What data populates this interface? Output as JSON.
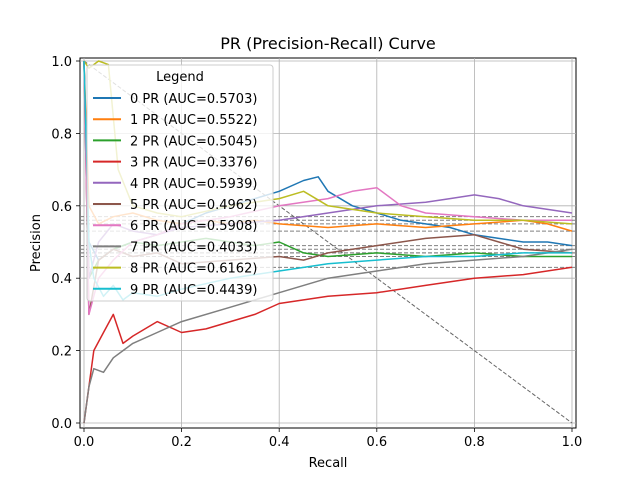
{
  "chart_data": {
    "type": "line",
    "title": "PR (Precision-Recall) Curve",
    "xlabel": "Recall",
    "ylabel": "Precision",
    "xlim": [
      0,
      1
    ],
    "ylim": [
      0,
      1
    ],
    "xticks": [
      "0.0",
      "0.2",
      "0.4",
      "0.6",
      "0.8",
      "1.0"
    ],
    "yticks": [
      "0.0",
      "0.2",
      "0.4",
      "0.6",
      "0.8",
      "1.0"
    ],
    "grid": true,
    "legend_title": "Legend",
    "legend_position": "upper-left",
    "diagonal_reference": {
      "x": [
        0,
        1
      ],
      "y": [
        1,
        0
      ]
    },
    "series": [
      {
        "name": "0 PR (AUC=0.5703)",
        "color": "#1f77b4",
        "baseline": 0.49,
        "x": [
          0,
          0.01,
          0.03,
          0.06,
          0.1,
          0.15,
          0.2,
          0.25,
          0.3,
          0.35,
          0.4,
          0.45,
          0.48,
          0.5,
          0.55,
          0.6,
          0.65,
          0.7,
          0.75,
          0.8,
          0.85,
          0.9,
          0.95,
          1.0
        ],
        "y": [
          1.0,
          0.5,
          0.45,
          0.48,
          0.5,
          0.52,
          0.55,
          0.58,
          0.6,
          0.62,
          0.64,
          0.67,
          0.68,
          0.64,
          0.6,
          0.58,
          0.56,
          0.55,
          0.54,
          0.52,
          0.51,
          0.5,
          0.5,
          0.49
        ]
      },
      {
        "name": "1 PR (AUC=0.5522)",
        "color": "#ff7f0e",
        "baseline": 0.53,
        "x": [
          0,
          0.01,
          0.03,
          0.06,
          0.1,
          0.15,
          0.2,
          0.25,
          0.3,
          0.35,
          0.4,
          0.5,
          0.6,
          0.7,
          0.8,
          0.9,
          0.95,
          1.0
        ],
        "y": [
          1.0,
          0.6,
          0.55,
          0.57,
          0.58,
          0.56,
          0.55,
          0.56,
          0.55,
          0.56,
          0.55,
          0.54,
          0.55,
          0.54,
          0.55,
          0.56,
          0.55,
          0.53
        ]
      },
      {
        "name": "2 PR (AUC=0.5045)",
        "color": "#2ca02c",
        "baseline": 0.46,
        "x": [
          0,
          0.01,
          0.03,
          0.06,
          0.1,
          0.15,
          0.2,
          0.25,
          0.3,
          0.35,
          0.4,
          0.45,
          0.5,
          0.6,
          0.7,
          0.8,
          0.9,
          1.0
        ],
        "y": [
          1.0,
          0.4,
          0.45,
          0.48,
          0.5,
          0.49,
          0.5,
          0.51,
          0.5,
          0.49,
          0.5,
          0.47,
          0.46,
          0.47,
          0.46,
          0.47,
          0.46,
          0.46
        ]
      },
      {
        "name": "3 PR (AUC=0.3376)",
        "color": "#d62728",
        "baseline": 0.43,
        "x": [
          0,
          0.01,
          0.02,
          0.04,
          0.06,
          0.08,
          0.1,
          0.15,
          0.2,
          0.25,
          0.3,
          0.35,
          0.4,
          0.5,
          0.6,
          0.7,
          0.8,
          0.9,
          1.0
        ],
        "y": [
          0.0,
          0.1,
          0.2,
          0.25,
          0.3,
          0.22,
          0.24,
          0.28,
          0.25,
          0.26,
          0.28,
          0.3,
          0.33,
          0.35,
          0.36,
          0.38,
          0.4,
          0.41,
          0.43
        ]
      },
      {
        "name": "4 PR (AUC=0.5939)",
        "color": "#9467bd",
        "baseline": 0.57,
        "x": [
          0,
          0.01,
          0.03,
          0.06,
          0.1,
          0.15,
          0.2,
          0.3,
          0.4,
          0.5,
          0.6,
          0.7,
          0.75,
          0.8,
          0.85,
          0.9,
          0.95,
          1.0
        ],
        "y": [
          1.0,
          0.4,
          0.5,
          0.55,
          0.53,
          0.52,
          0.54,
          0.55,
          0.56,
          0.58,
          0.6,
          0.61,
          0.62,
          0.63,
          0.62,
          0.6,
          0.59,
          0.58
        ]
      },
      {
        "name": "5 PR (AUC=0.4962)",
        "color": "#8c564b",
        "baseline": 0.47,
        "x": [
          0,
          0.01,
          0.03,
          0.06,
          0.1,
          0.15,
          0.2,
          0.3,
          0.4,
          0.45,
          0.5,
          0.6,
          0.7,
          0.8,
          0.85,
          0.9,
          1.0
        ],
        "y": [
          1.0,
          0.3,
          0.45,
          0.48,
          0.46,
          0.47,
          0.44,
          0.45,
          0.46,
          0.45,
          0.47,
          0.49,
          0.51,
          0.52,
          0.5,
          0.48,
          0.47
        ]
      },
      {
        "name": "6 PR (AUC=0.5908)",
        "color": "#e377c2",
        "baseline": 0.56,
        "x": [
          0,
          0.01,
          0.03,
          0.06,
          0.1,
          0.15,
          0.2,
          0.3,
          0.4,
          0.5,
          0.55,
          0.6,
          0.65,
          0.7,
          0.8,
          0.9,
          1.0
        ],
        "y": [
          1.0,
          0.3,
          0.4,
          0.45,
          0.5,
          0.52,
          0.55,
          0.57,
          0.6,
          0.62,
          0.64,
          0.65,
          0.6,
          0.58,
          0.57,
          0.56,
          0.56
        ]
      },
      {
        "name": "7 PR (AUC=0.4033)",
        "color": "#7f7f7f",
        "baseline": 0.48,
        "x": [
          0,
          0.01,
          0.02,
          0.04,
          0.06,
          0.08,
          0.1,
          0.15,
          0.2,
          0.3,
          0.4,
          0.5,
          0.6,
          0.7,
          0.8,
          0.9,
          1.0
        ],
        "y": [
          0.0,
          0.1,
          0.15,
          0.14,
          0.18,
          0.2,
          0.22,
          0.25,
          0.28,
          0.32,
          0.36,
          0.4,
          0.42,
          0.44,
          0.45,
          0.46,
          0.48
        ]
      },
      {
        "name": "8 PR (AUC=0.6162)",
        "color": "#bcbd22",
        "baseline": 0.55,
        "x": [
          0,
          0.01,
          0.03,
          0.05,
          0.07,
          0.1,
          0.15,
          0.2,
          0.3,
          0.4,
          0.45,
          0.5,
          0.6,
          0.7,
          0.8,
          0.9,
          1.0
        ],
        "y": [
          1.0,
          0.98,
          1.0,
          0.99,
          0.7,
          0.6,
          0.58,
          0.57,
          0.6,
          0.62,
          0.64,
          0.6,
          0.58,
          0.57,
          0.56,
          0.56,
          0.55
        ]
      },
      {
        "name": "9 PR (AUC=0.4439)",
        "color": "#17becf",
        "baseline": 0.47,
        "x": [
          0,
          0.01,
          0.02,
          0.04,
          0.06,
          0.08,
          0.1,
          0.15,
          0.2,
          0.3,
          0.4,
          0.5,
          0.6,
          0.7,
          0.8,
          0.9,
          1.0
        ],
        "y": [
          1.0,
          0.5,
          0.4,
          0.35,
          0.38,
          0.34,
          0.36,
          0.35,
          0.37,
          0.4,
          0.42,
          0.44,
          0.45,
          0.46,
          0.46,
          0.47,
          0.47
        ]
      }
    ]
  }
}
